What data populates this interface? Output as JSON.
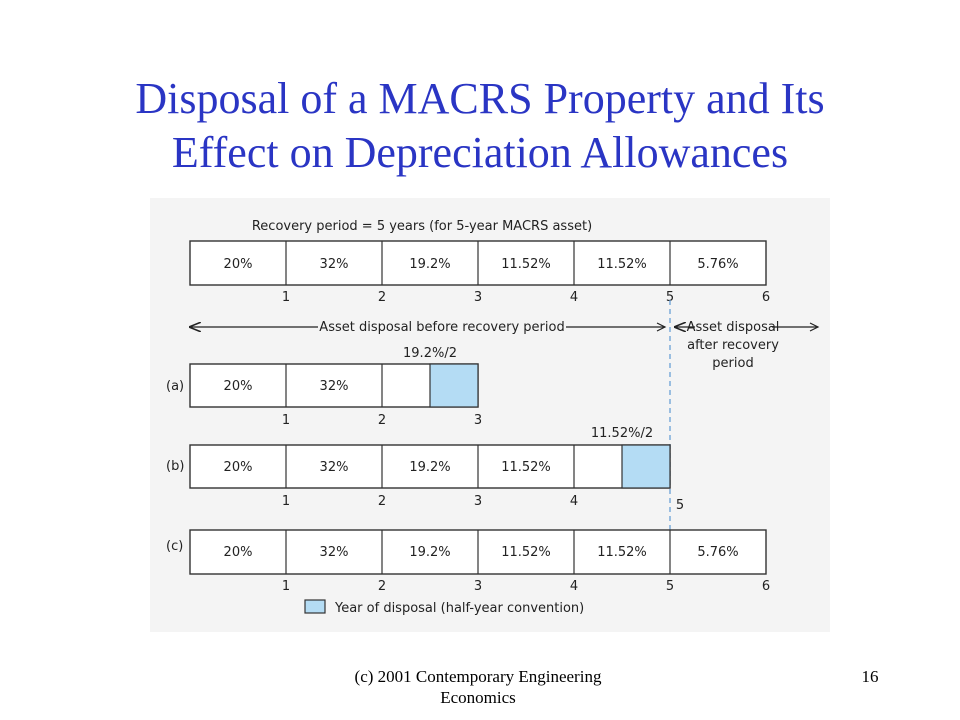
{
  "slide": {
    "title_line1": "Disposal of a MACRS Property and Its",
    "title_line2": "Effect on Depreciation Allowances",
    "footer_line1": "(c) 2001 Contemporary Engineering",
    "footer_line2": "Economics",
    "page_number": "16"
  },
  "figure": {
    "recovery_caption": "Recovery period = 5 years (for 5-year MACRS asset)",
    "top_row": {
      "cells": [
        "20%",
        "32%",
        "19.2%",
        "11.52%",
        "11.52%",
        "5.76%"
      ],
      "ticks": [
        "1",
        "2",
        "3",
        "4",
        "5",
        "6"
      ]
    },
    "arrow_before": "Asset disposal before recovery period",
    "arrow_after_lines": [
      "Asset disposal",
      "after recovery",
      "period"
    ],
    "scenarios": [
      {
        "label": "(a)",
        "cells": [
          "20%",
          "32%"
        ],
        "half_label": "19.2%/2",
        "ticks": [
          "1",
          "2",
          "3"
        ]
      },
      {
        "label": "(b)",
        "cells": [
          "20%",
          "32%",
          "19.2%",
          "11.52%"
        ],
        "half_label": "11.52%/2",
        "ticks": [
          "1",
          "2",
          "3",
          "4",
          "5"
        ]
      },
      {
        "label": "(c)",
        "cells": [
          "20%",
          "32%",
          "19.2%",
          "11.52%",
          "11.52%",
          "5.76%"
        ],
        "ticks": [
          "1",
          "2",
          "3",
          "4",
          "5",
          "6"
        ]
      }
    ],
    "legend_label": "Year of disposal (half-year convention)",
    "colors": {
      "title": "#2a35c4",
      "disposal_fill": "#b4dcf4",
      "figure_background": "#f4f4f4",
      "dashed_line": "#6aa0d6"
    }
  }
}
